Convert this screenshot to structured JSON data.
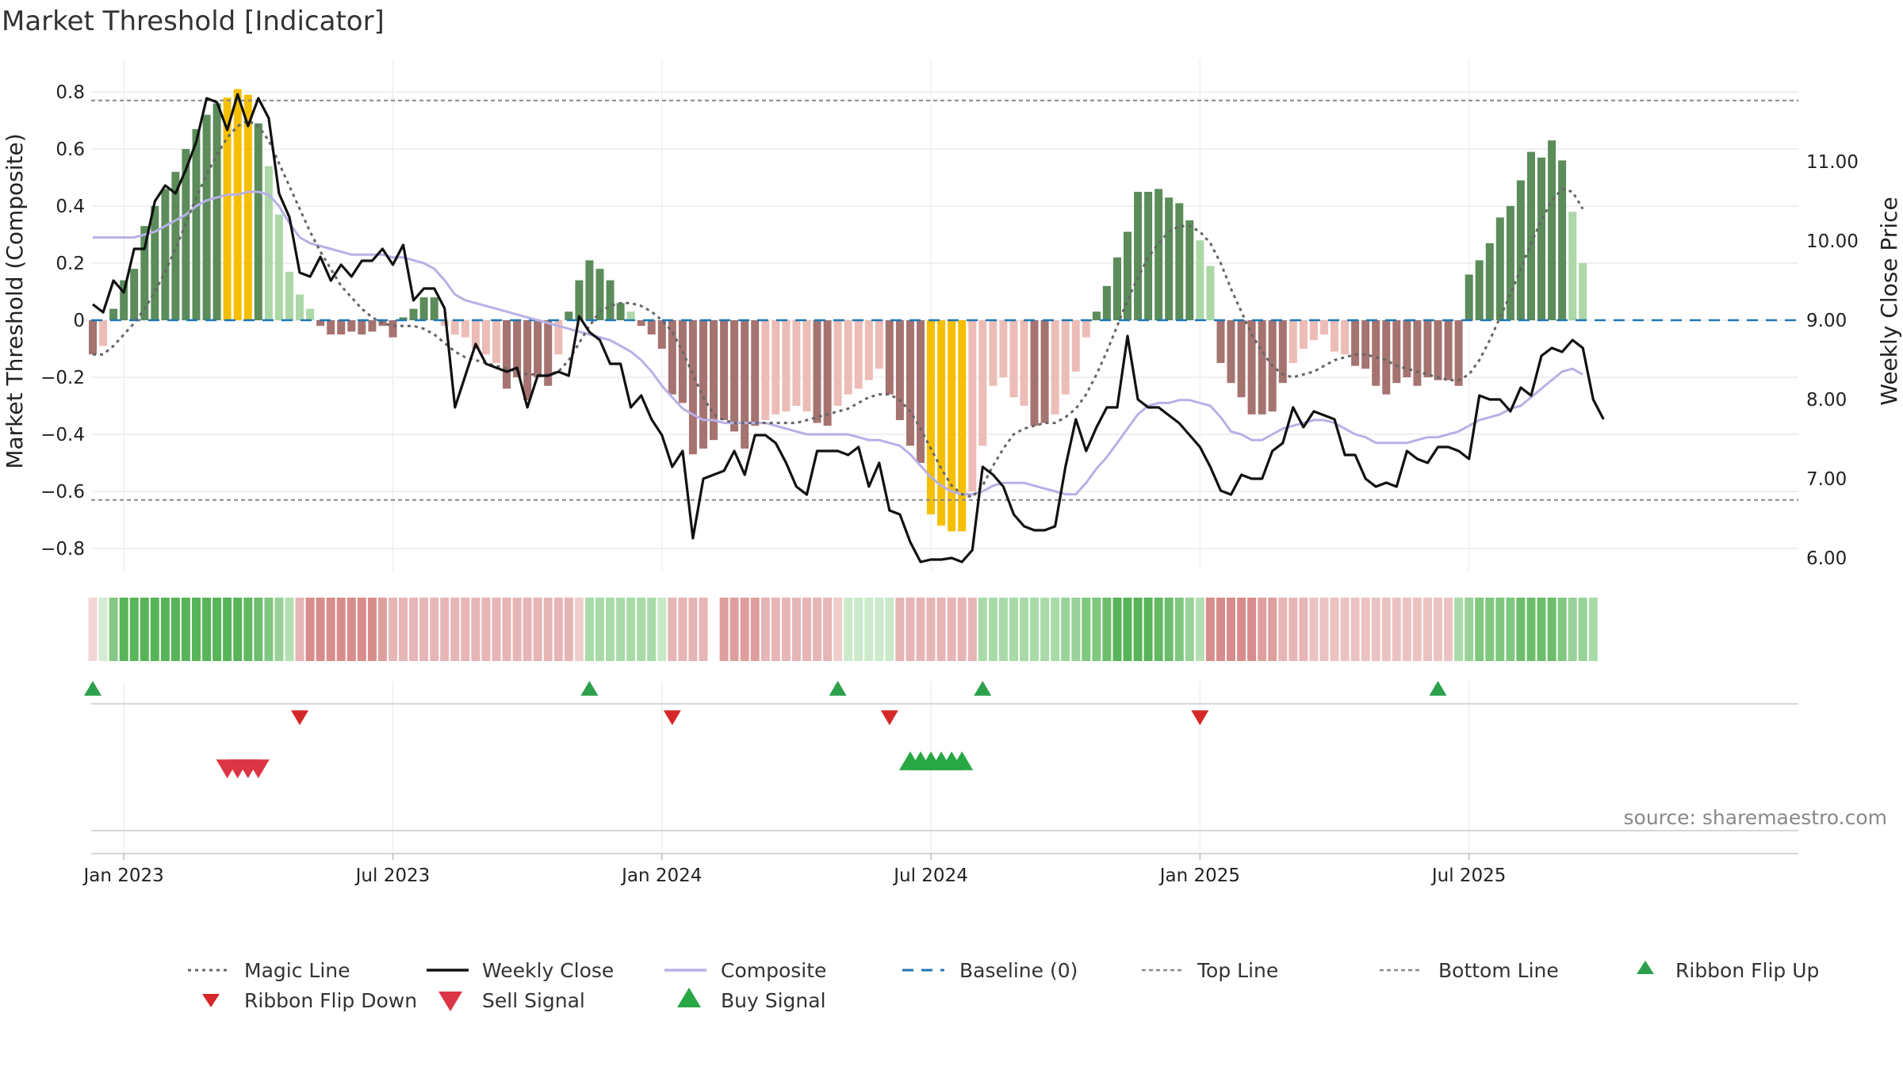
{
  "chart_data": {
    "type": "bar",
    "title": "Market Threshold [Indicator]",
    "ylabel": "Market Threshold (Composite)",
    "y2label": "Weekly Close Price",
    "source": "source: sharemaestro.com",
    "ylim": [
      -0.9,
      0.9
    ],
    "y2lim": [
      5.5,
      12.0
    ],
    "yticks": [
      {
        "v": 0.8,
        "label": "0.8"
      },
      {
        "v": 0.6,
        "label": "0.6"
      },
      {
        "v": 0.4,
        "label": "0.4"
      },
      {
        "v": 0.2,
        "label": "0.2"
      },
      {
        "v": 0,
        "label": "0"
      },
      {
        "v": -0.2,
        "label": "−0.2"
      },
      {
        "v": -0.4,
        "label": "−0.4"
      },
      {
        "v": -0.6,
        "label": "−0.6"
      },
      {
        "v": -0.8,
        "label": "−0.8"
      }
    ],
    "y2ticks": [
      {
        "v": 11,
        "label": "11.00"
      },
      {
        "v": 10,
        "label": "10.00"
      },
      {
        "v": 9,
        "label": "9.00"
      },
      {
        "v": 8,
        "label": "8.00"
      },
      {
        "v": 7,
        "label": "7.00"
      },
      {
        "v": 6,
        "label": "6.00"
      }
    ],
    "xticks": [
      {
        "label": "Jan 2023",
        "week": 3
      },
      {
        "label": "Jul 2023",
        "week": 29
      },
      {
        "label": "Jan 2024",
        "week": 55
      },
      {
        "label": "Jul 2024",
        "week": 81
      },
      {
        "label": "Jan 2025",
        "week": 107
      },
      {
        "label": "Jul 2025",
        "week": 133
      }
    ],
    "top_line": 0.77,
    "bottom_line": -0.63,
    "baseline": 0,
    "composite_bars": [
      -0.12,
      -0.09,
      0.04,
      0.14,
      0.18,
      0.33,
      0.4,
      0.46,
      0.52,
      0.6,
      0.67,
      0.72,
      0.76,
      0.78,
      0.81,
      0.79,
      0.69,
      0.54,
      0.37,
      0.17,
      0.09,
      0.04,
      -0.02,
      -0.05,
      -0.05,
      -0.04,
      -0.05,
      -0.04,
      -0.02,
      -0.06,
      0.01,
      0.04,
      0.08,
      0.08,
      -0.02,
      -0.05,
      -0.06,
      -0.1,
      -0.12,
      -0.15,
      -0.24,
      -0.2,
      -0.28,
      -0.2,
      -0.23,
      -0.12,
      0.03,
      0.14,
      0.21,
      0.18,
      0.14,
      0.06,
      0.03,
      -0.02,
      -0.05,
      -0.1,
      -0.26,
      -0.29,
      -0.47,
      -0.45,
      -0.42,
      -0.35,
      -0.39,
      -0.45,
      -0.37,
      -0.35,
      -0.33,
      -0.32,
      -0.3,
      -0.32,
      -0.36,
      -0.37,
      -0.3,
      -0.26,
      -0.24,
      -0.21,
      -0.17,
      -0.26,
      -0.35,
      -0.44,
      -0.5,
      -0.68,
      -0.72,
      -0.74,
      -0.74,
      -0.6,
      -0.44,
      -0.23,
      -0.2,
      -0.27,
      -0.3,
      -0.37,
      -0.36,
      -0.33,
      -0.26,
      -0.18,
      -0.06,
      0.03,
      0.12,
      0.22,
      0.31,
      0.45,
      0.45,
      0.46,
      0.43,
      0.41,
      0.35,
      0.28,
      0.19,
      -0.15,
      -0.22,
      -0.27,
      -0.33,
      -0.33,
      -0.32,
      -0.22,
      -0.15,
      -0.1,
      -0.07,
      -0.05,
      -0.11,
      -0.12,
      -0.16,
      -0.17,
      -0.23,
      -0.26,
      -0.22,
      -0.2,
      -0.23,
      -0.2,
      -0.21,
      -0.21,
      -0.23,
      0.16,
      0.21,
      0.27,
      0.36,
      0.4,
      0.49,
      0.59,
      0.57,
      0.63,
      0.56,
      0.38,
      0.2
    ],
    "magic_line": [
      -0.12,
      -0.12,
      -0.09,
      -0.05,
      -0.01,
      0.04,
      0.1,
      0.17,
      0.25,
      0.34,
      0.43,
      0.51,
      0.58,
      0.64,
      0.68,
      0.7,
      0.68,
      0.63,
      0.55,
      0.47,
      0.39,
      0.31,
      0.24,
      0.18,
      0.12,
      0.08,
      0.04,
      0.01,
      -0.01,
      -0.02,
      -0.02,
      -0.02,
      -0.03,
      -0.05,
      -0.08,
      -0.11,
      -0.13,
      -0.14,
      -0.15,
      -0.16,
      -0.17,
      -0.18,
      -0.19,
      -0.19,
      -0.19,
      -0.18,
      -0.14,
      -0.08,
      -0.02,
      0.03,
      0.05,
      0.06,
      0.06,
      0.05,
      0.03,
      0.0,
      -0.04,
      -0.11,
      -0.19,
      -0.27,
      -0.33,
      -0.35,
      -0.36,
      -0.36,
      -0.36,
      -0.36,
      -0.36,
      -0.36,
      -0.36,
      -0.35,
      -0.34,
      -0.33,
      -0.32,
      -0.31,
      -0.29,
      -0.27,
      -0.26,
      -0.26,
      -0.28,
      -0.32,
      -0.38,
      -0.45,
      -0.52,
      -0.58,
      -0.61,
      -0.62,
      -0.58,
      -0.51,
      -0.45,
      -0.4,
      -0.38,
      -0.37,
      -0.36,
      -0.36,
      -0.34,
      -0.31,
      -0.26,
      -0.19,
      -0.11,
      -0.02,
      0.07,
      0.15,
      0.22,
      0.27,
      0.31,
      0.33,
      0.33,
      0.31,
      0.27,
      0.2,
      0.11,
      0.03,
      -0.05,
      -0.11,
      -0.16,
      -0.19,
      -0.2,
      -0.19,
      -0.18,
      -0.16,
      -0.14,
      -0.13,
      -0.12,
      -0.12,
      -0.13,
      -0.14,
      -0.16,
      -0.17,
      -0.18,
      -0.19,
      -0.2,
      -0.21,
      -0.21,
      -0.19,
      -0.14,
      -0.07,
      0.01,
      0.09,
      0.18,
      0.27,
      0.35,
      0.42,
      0.46,
      0.45,
      0.39
    ],
    "composite_line": [
      0.29,
      0.29,
      0.29,
      0.29,
      0.29,
      0.3,
      0.31,
      0.33,
      0.35,
      0.37,
      0.4,
      0.42,
      0.43,
      0.44,
      0.44,
      0.45,
      0.45,
      0.44,
      0.4,
      0.34,
      0.29,
      0.27,
      0.26,
      0.25,
      0.24,
      0.23,
      0.23,
      0.23,
      0.23,
      0.22,
      0.22,
      0.21,
      0.2,
      0.18,
      0.14,
      0.09,
      0.07,
      0.06,
      0.05,
      0.04,
      0.03,
      0.02,
      0.01,
      0.0,
      -0.01,
      -0.02,
      -0.03,
      -0.04,
      -0.05,
      -0.06,
      -0.07,
      -0.09,
      -0.11,
      -0.14,
      -0.18,
      -0.23,
      -0.27,
      -0.31,
      -0.33,
      -0.35,
      -0.35,
      -0.36,
      -0.36,
      -0.36,
      -0.36,
      -0.36,
      -0.37,
      -0.38,
      -0.39,
      -0.4,
      -0.4,
      -0.4,
      -0.4,
      -0.4,
      -0.41,
      -0.42,
      -0.42,
      -0.43,
      -0.44,
      -0.47,
      -0.51,
      -0.55,
      -0.58,
      -0.6,
      -0.61,
      -0.61,
      -0.6,
      -0.58,
      -0.57,
      -0.57,
      -0.57,
      -0.58,
      -0.59,
      -0.6,
      -0.61,
      -0.61,
      -0.57,
      -0.52,
      -0.48,
      -0.43,
      -0.38,
      -0.33,
      -0.3,
      -0.29,
      -0.29,
      -0.28,
      -0.28,
      -0.29,
      -0.3,
      -0.34,
      -0.39,
      -0.4,
      -0.42,
      -0.42,
      -0.4,
      -0.38,
      -0.37,
      -0.36,
      -0.35,
      -0.35,
      -0.36,
      -0.38,
      -0.4,
      -0.41,
      -0.43,
      -0.43,
      -0.43,
      -0.43,
      -0.42,
      -0.41,
      -0.41,
      -0.4,
      -0.39,
      -0.37,
      -0.35,
      -0.34,
      -0.33,
      -0.31,
      -0.3,
      -0.27,
      -0.24,
      -0.21,
      -0.18,
      -0.17,
      -0.19
    ],
    "weekly_close": [
      9.2,
      9.1,
      9.5,
      9.35,
      9.9,
      9.9,
      10.5,
      10.7,
      10.6,
      10.9,
      11.25,
      11.8,
      11.75,
      11.4,
      11.85,
      11.45,
      11.8,
      11.55,
      10.6,
      10.3,
      9.6,
      9.55,
      9.8,
      9.5,
      9.7,
      9.55,
      9.75,
      9.75,
      9.9,
      9.7,
      9.95,
      9.25,
      9.4,
      9.4,
      9.15,
      7.9,
      8.3,
      8.7,
      8.45,
      8.4,
      8.35,
      8.4,
      7.9,
      8.3,
      8.3,
      8.35,
      8.3,
      9.05,
      8.85,
      8.75,
      8.45,
      8.45,
      7.9,
      8.05,
      7.75,
      7.55,
      7.15,
      7.35,
      6.25,
      7.0,
      7.05,
      7.1,
      7.35,
      7.05,
      7.55,
      7.55,
      7.45,
      7.2,
      6.9,
      6.8,
      7.35,
      7.35,
      7.35,
      7.3,
      7.4,
      6.9,
      7.2,
      6.6,
      6.55,
      6.2,
      5.95,
      5.98,
      5.98,
      6.0,
      5.95,
      6.1,
      7.15,
      7.05,
      6.9,
      6.55,
      6.4,
      6.35,
      6.35,
      6.4,
      7.15,
      7.75,
      7.35,
      7.65,
      7.9,
      7.9,
      8.8,
      8.0,
      7.9,
      7.9,
      7.8,
      7.7,
      7.55,
      7.4,
      7.15,
      6.85,
      6.8,
      7.05,
      7.0,
      7.0,
      7.35,
      7.45,
      7.9,
      7.65,
      7.85,
      7.8,
      7.75,
      7.3,
      7.3,
      7.0,
      6.9,
      6.95,
      6.9,
      7.35,
      7.25,
      7.2,
      7.4,
      7.4,
      7.35,
      7.25,
      8.05,
      8.0,
      8.0,
      7.85,
      8.15,
      8.05,
      8.55,
      8.65,
      8.6,
      8.75,
      8.65,
      8.0,
      7.75
    ],
    "ribbon": [
      "#f2d6d6",
      "#d3ead3",
      "#86c686",
      "#58b458",
      "#5ab65a",
      "#58b458",
      "#58b458",
      "#58b458",
      "#58b458",
      "#58b458",
      "#58b458",
      "#58b458",
      "#58b458",
      "#58b458",
      "#58b458",
      "#62b962",
      "#6cbe6c",
      "#80c880",
      "#99d299",
      "#b3dfb3",
      "#e6b5b5",
      "#d98c8c",
      "#d98c8c",
      "#d98c8c",
      "#d98c8c",
      "#d98c8c",
      "#d98c8c",
      "#d98c8c",
      "#df9e9e",
      "#e6b5b5",
      "#e6b5b5",
      "#e6b5b5",
      "#e6b5b5",
      "#e6b5b5",
      "#e6b5b5",
      "#e6b5b5",
      "#e6b5b5",
      "#e6b5b5",
      "#e6b5b5",
      "#e6b5b5",
      "#e6b5b5",
      "#e6b5b5",
      "#e6b5b5",
      "#e6b5b5",
      "#e6b5b5",
      "#e6b5b5",
      "#e6b5b5",
      "#f0cdcd",
      "#a8dba8",
      "#a8dba8",
      "#a8dba8",
      "#a8dba8",
      "#a8dba8",
      "#a8dba8",
      "#a8dba8",
      "#c6e8c6",
      "#e6b5b5",
      "#e6b5b5",
      "#e6b5b5",
      "#e6b5b5",
      null,
      "#df9e9e",
      "#df9e9e",
      "#df9e9e",
      "#df9e9e",
      "#e6b5b5",
      "#e6b5b5",
      "#e6b5b5",
      "#e6b5b5",
      "#e6b5b5",
      "#e6b5b5",
      "#e6b5b5",
      "#f0cdcd",
      "#cbeacb",
      "#cbeacb",
      "#cbeacb",
      "#cbeacb",
      "#cbeacb",
      "#e6b5b5",
      "#e6b5b5",
      "#e6b5b5",
      "#e6b5b5",
      "#e6b5b5",
      "#e6b5b5",
      "#e6b5b5",
      "#e6b5b5",
      "#a8dba8",
      "#a8dba8",
      "#a8dba8",
      "#a8dba8",
      "#a8dba8",
      "#a8dba8",
      "#a8dba8",
      "#a8dba8",
      "#99d299",
      "#99d299",
      "#80c880",
      "#80c880",
      "#6cbe6c",
      "#58b458",
      "#58b458",
      "#58b458",
      "#58b458",
      "#62b962",
      "#6cbe6c",
      "#80c880",
      "#99d299",
      "#b3dfb3",
      "#d98c8c",
      "#d98c8c",
      "#d98c8c",
      "#d98c8c",
      "#d98c8c",
      "#df9e9e",
      "#df9e9e",
      "#e6b5b5",
      "#e6b5b5",
      "#e6b5b5",
      "#ebc2c2",
      "#ebc2c2",
      "#ebc2c2",
      "#ebc2c2",
      "#ebc2c2",
      "#ebc2c2",
      "#ebc2c2",
      "#ebc2c2",
      "#ebc2c2",
      "#ebc2c2",
      "#ebc2c2",
      "#ebc2c2",
      "#ebc2c2",
      "#ebc2c2",
      "#a8dba8",
      "#99d299",
      "#80c880",
      "#80c880",
      "#80c880",
      "#80c880",
      "#6cbe6c",
      "#6cbe6c",
      "#6cbe6c",
      "#6cbe6c",
      "#80c880",
      "#99d299",
      "#99d299",
      "#a8dba8"
    ],
    "ribbon_flip_up": [
      0,
      48,
      72,
      86,
      130
    ],
    "ribbon_flip_down": [
      20,
      56,
      77,
      107
    ],
    "sell_signals": [
      13,
      14,
      15,
      16
    ],
    "buy_signals": [
      79,
      80,
      81,
      82,
      83,
      84
    ],
    "colors": {
      "bar_pos_strong": "#5b8c5a",
      "bar_pos_weak": "#acd8a7",
      "bar_neg_strong": "#a57370",
      "bar_neg_weak": "#ecbcb7",
      "bar_extreme": "#f5bf00",
      "weekly_close": "#111111",
      "composite": "#b8b0e6",
      "magic": "#666666",
      "baseline": "#1f77b4",
      "threshold": "#888888",
      "flip_up": "#2ca04c",
      "flip_down": "#d62728",
      "sell": "#dc3545",
      "buy": "#28a745"
    },
    "legend": {
      "magic": "Magic Line",
      "weekly_close": "Weekly Close",
      "composite": "Composite",
      "baseline": "Baseline (0)",
      "top_line": "Top Line",
      "bottom_line": "Bottom Line",
      "flip_up": "Ribbon Flip Up",
      "flip_down": "Ribbon Flip Down",
      "sell": "Sell Signal",
      "buy": "Buy Signal"
    }
  }
}
